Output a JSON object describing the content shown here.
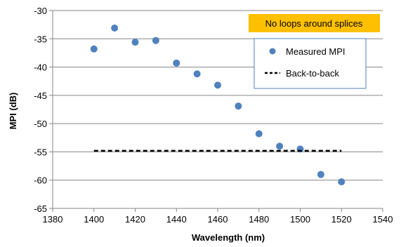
{
  "chart_data": {
    "type": "scatter",
    "title": "",
    "xlabel": "Wavelength (nm)",
    "ylabel": "MPI (dB)",
    "xlim": [
      1380,
      1540
    ],
    "ylim": [
      -65,
      -30
    ],
    "xticks": [
      1380,
      1400,
      1420,
      1440,
      1460,
      1480,
      1500,
      1520,
      1540
    ],
    "yticks": [
      -30,
      -35,
      -40,
      -45,
      -50,
      -55,
      -60,
      -65
    ],
    "grid": "horizontal",
    "annotation": {
      "text": "No loops around splices",
      "color": "#FFC000"
    },
    "legend": {
      "placement": "top-right",
      "entries": [
        "Measured MPI",
        "Back-to-back"
      ]
    },
    "series": [
      {
        "name": "Measured MPI",
        "kind": "scatter",
        "color": "#4F81BD",
        "points": [
          {
            "x": 1400,
            "y": -36.8
          },
          {
            "x": 1410,
            "y": -33.1
          },
          {
            "x": 1420,
            "y": -35.6
          },
          {
            "x": 1430,
            "y": -35.3
          },
          {
            "x": 1440,
            "y": -39.3
          },
          {
            "x": 1450,
            "y": -41.2
          },
          {
            "x": 1460,
            "y": -43.2
          },
          {
            "x": 1470,
            "y": -46.9
          },
          {
            "x": 1480,
            "y": -51.8
          },
          {
            "x": 1490,
            "y": -54.0
          },
          {
            "x": 1500,
            "y": -54.5
          },
          {
            "x": 1510,
            "y": -59.0
          },
          {
            "x": 1520,
            "y": -60.3
          }
        ]
      },
      {
        "name": "Back-to-back",
        "kind": "dashed-line",
        "color": "#000000",
        "points": [
          {
            "x": 1400,
            "y": -54.8
          },
          {
            "x": 1520,
            "y": -54.8
          }
        ]
      }
    ]
  }
}
